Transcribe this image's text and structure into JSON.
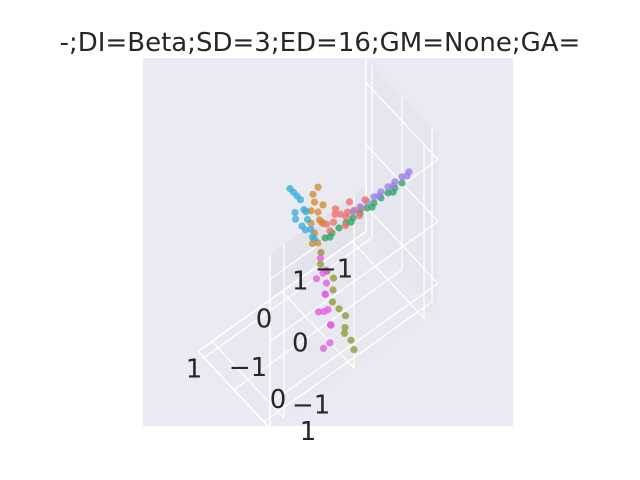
{
  "chart_data": {
    "type": "scatter",
    "projection": "3d",
    "title": "-;DI=Beta;SD=3;ED=16;GM=None;GA=",
    "xlabel": "",
    "ylabel": "",
    "zlabel": "",
    "x_ticks": [
      "−1",
      "0",
      "1"
    ],
    "y_ticks": [
      "−1",
      "0",
      "1"
    ],
    "z_ticks": [
      "−1",
      "0",
      "1"
    ],
    "xlim": [
      -1.2,
      1.2
    ],
    "ylim": [
      -1.2,
      1.2
    ],
    "zlim": [
      -1.4,
      1.4
    ],
    "grid": true,
    "legend": "none",
    "background_color": "#eaeaf2",
    "series": [
      {
        "color": "#f0716c",
        "points": [
          [
            -0.6,
            0.05,
            0.1
          ],
          [
            -0.5,
            0.05,
            0.15
          ],
          [
            -0.4,
            0.05,
            0.2
          ],
          [
            -0.3,
            0.05,
            0.25
          ],
          [
            -0.2,
            0.05,
            0.2
          ],
          [
            -0.1,
            0.05,
            0.25
          ],
          [
            -0.55,
            0.1,
            0.05
          ],
          [
            -0.45,
            0.0,
            0.3
          ],
          [
            -0.35,
            0.1,
            0.05
          ],
          [
            -0.25,
            0.0,
            0.35
          ],
          [
            -0.15,
            0.05,
            0.1
          ],
          [
            -0.65,
            0.05,
            0.2
          ],
          [
            -0.05,
            0.05,
            0.3
          ],
          [
            -0.4,
            0.0,
            0.1
          ],
          [
            -0.2,
            0.1,
            0.35
          ]
        ]
      },
      {
        "color": "#d18a35",
        "points": [
          [
            0.0,
            0.0,
            0.0
          ],
          [
            0.05,
            0.0,
            0.2
          ],
          [
            0.0,
            0.05,
            0.4
          ],
          [
            0.1,
            0.0,
            0.6
          ],
          [
            -0.05,
            0.0,
            0.3
          ],
          [
            0.05,
            -0.05,
            0.8
          ],
          [
            0.0,
            0.0,
            0.5
          ],
          [
            0.1,
            0.05,
            0.1
          ],
          [
            0.05,
            0.0,
            0.7
          ],
          [
            0.0,
            0.0,
            0.9
          ],
          [
            -0.05,
            0.05,
            0.6
          ],
          [
            0.1,
            0.0,
            0.4
          ]
        ]
      },
      {
        "color": "#3aaed6",
        "points": [
          [
            0.05,
            0.0,
            0.1
          ],
          [
            0.1,
            0.0,
            0.3
          ],
          [
            0.15,
            0.0,
            0.5
          ],
          [
            0.2,
            0.0,
            0.7
          ],
          [
            0.25,
            0.0,
            0.9
          ],
          [
            0.3,
            0.0,
            1.0
          ],
          [
            0.35,
            0.0,
            1.1
          ],
          [
            0.4,
            0.0,
            1.2
          ],
          [
            0.1,
            0.05,
            0.2
          ],
          [
            0.2,
            0.05,
            0.4
          ],
          [
            0.3,
            -0.05,
            0.6
          ],
          [
            0.35,
            0.05,
            0.8
          ],
          [
            0.15,
            -0.05,
            0.6
          ],
          [
            0.25,
            0.05,
            0.5
          ]
        ]
      },
      {
        "color": "#e55ce0",
        "points": [
          [
            0.05,
            0.2,
            -0.1
          ],
          [
            0.1,
            0.4,
            -0.2
          ],
          [
            0.15,
            0.6,
            -0.4
          ],
          [
            0.2,
            0.8,
            -0.5
          ],
          [
            0.25,
            1.0,
            -0.6
          ],
          [
            0.3,
            1.1,
            -0.8
          ],
          [
            0.1,
            0.5,
            -0.1
          ],
          [
            0.2,
            0.7,
            -0.3
          ],
          [
            0.3,
            0.9,
            -0.4
          ],
          [
            0.15,
            0.3,
            -0.3
          ],
          [
            0.25,
            0.6,
            -0.6
          ],
          [
            0.35,
            1.0,
            -0.9
          ],
          [
            0.05,
            0.4,
            -0.4
          ],
          [
            0.2,
            0.9,
            -0.7
          ]
        ]
      },
      {
        "color": "#8e9a37",
        "points": [
          [
            0.0,
            0.1,
            -0.1
          ],
          [
            0.0,
            0.3,
            -0.3
          ],
          [
            0.0,
            0.5,
            -0.5
          ],
          [
            0.0,
            0.7,
            -0.7
          ],
          [
            0.0,
            0.9,
            -0.9
          ],
          [
            0.0,
            1.1,
            -1.0
          ],
          [
            0.0,
            1.2,
            -1.1
          ],
          [
            0.05,
            0.2,
            -0.2
          ],
          [
            0.05,
            0.6,
            -0.6
          ],
          [
            0.05,
            1.0,
            -0.9
          ],
          [
            -0.05,
            0.4,
            -0.4
          ],
          [
            -0.05,
            0.8,
            -0.8
          ]
        ]
      },
      {
        "color": "#2ba561",
        "points": [
          [
            -0.1,
            0.0,
            0.0
          ],
          [
            -0.2,
            0.0,
            0.0
          ],
          [
            -0.3,
            0.0,
            0.0
          ],
          [
            -0.4,
            0.0,
            0.0
          ],
          [
            -0.5,
            0.0,
            0.0
          ],
          [
            -0.6,
            0.0,
            0.0
          ],
          [
            -0.7,
            0.0,
            0.0
          ],
          [
            -0.8,
            0.0,
            0.0
          ],
          [
            -0.9,
            0.0,
            0.0
          ],
          [
            -1.0,
            0.0,
            0.0
          ],
          [
            -1.1,
            0.0,
            0.0
          ],
          [
            -1.2,
            0.0,
            0.0
          ],
          [
            -0.15,
            0.05,
            0.0
          ],
          [
            -0.45,
            0.05,
            0.0
          ],
          [
            -0.75,
            0.05,
            0.0
          ],
          [
            -1.05,
            0.05,
            0.0
          ]
        ]
      },
      {
        "color": "#9b80e6",
        "points": [
          [
            -0.5,
            0.0,
            0.1
          ],
          [
            -0.6,
            0.0,
            0.1
          ],
          [
            -0.7,
            0.0,
            0.1
          ],
          [
            -0.8,
            0.0,
            0.1
          ],
          [
            -0.9,
            0.0,
            0.1
          ],
          [
            -1.0,
            0.0,
            0.1
          ],
          [
            -1.1,
            0.0,
            0.1
          ],
          [
            -1.2,
            0.0,
            0.1
          ],
          [
            -1.3,
            0.0,
            0.1
          ],
          [
            -0.85,
            0.05,
            0.1
          ],
          [
            -1.05,
            0.05,
            0.1
          ],
          [
            -1.25,
            0.05,
            0.1
          ]
        ]
      }
    ]
  }
}
